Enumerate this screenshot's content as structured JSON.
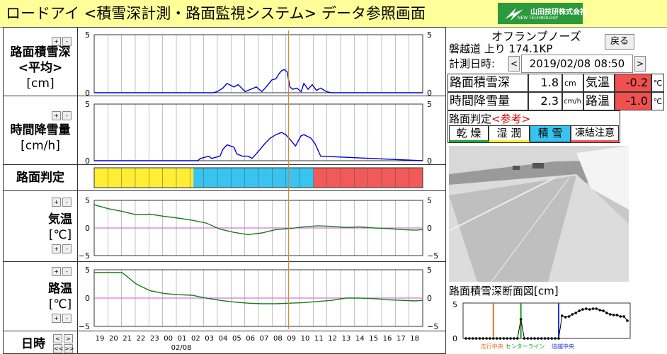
{
  "app": {
    "title": "ロードアイ <積雪深計測・路面監視システム> データ参照画面",
    "company": "山田技研株式会社",
    "company_sub": "NEW TECHNOLOGY"
  },
  "panels": {
    "snow_depth": {
      "label_line1": "路面積雪深",
      "label_line2": "<平均>",
      "label_line3": "[cm]"
    },
    "snowfall": {
      "label_line1": "時間降雪量",
      "label_line2": "[cm/h]"
    },
    "road_status": {
      "label": "路面判定"
    },
    "air_temp": {
      "label_line1": "気温",
      "label_line2": "[℃]"
    },
    "road_temp": {
      "label_line1": "路温",
      "label_line2": "[℃]"
    },
    "datetime_axis": {
      "label": "日時"
    }
  },
  "buttons": {
    "plus": "+",
    "minus": "-",
    "prev": "<",
    "next": ">",
    "first": "<<",
    "last": ">>"
  },
  "station": {
    "name": "オフランプノーズ",
    "route": "磐越道 上り 174.1KP",
    "back_label": "戻る",
    "datetime_label": "計測日時:",
    "datetime_value": "2019/02/08 08:50"
  },
  "readings": {
    "snow_depth_label": "路面積雪深",
    "snow_depth_value": "1.8",
    "snow_depth_unit": "cm",
    "air_temp_label": "気温",
    "air_temp_value": "-0.2",
    "temp_unit": "℃",
    "snowfall_label": "時間降雪量",
    "snowfall_value": "2.3",
    "snowfall_unit": "cm/h",
    "road_temp_label": "路温",
    "road_temp_value": "-1.0"
  },
  "judgement": {
    "title": "路面判定",
    "reference": "<参考>",
    "dry": "乾 燥",
    "wet": "湿 潤",
    "snow": "積 雪",
    "freeze": "凍結注意"
  },
  "cross_section": {
    "title": "路面積雪深断面図[cm]",
    "y_max_label": "5",
    "y_min_label": "0",
    "marker_left": "走行中央",
    "marker_center": "センターライン",
    "marker_right": "追越中央"
  },
  "colors": {
    "dry": "#22a833",
    "wet": "#ffee33",
    "snow": "#38c4f0",
    "freeze": "#f25a5a",
    "line_blue": "#0000dd",
    "line_green": "#1a7a1a"
  },
  "x_ticks": [
    "19",
    "20",
    "21",
    "22",
    "23",
    "00",
    "01",
    "02",
    "03",
    "04",
    "05",
    "06",
    "07",
    "08",
    "09",
    "10",
    "11",
    "12",
    "13",
    "14",
    "15",
    "16",
    "17",
    "18"
  ],
  "x_date_label": "02/08",
  "chart_data": [
    {
      "type": "line",
      "title": "路面積雪深",
      "ylim": [
        0,
        5
      ],
      "yticks": [
        0,
        5
      ],
      "x": [
        0,
        8.5,
        8.8,
        9.2,
        9.5,
        10.0,
        10.3,
        10.8,
        11.2,
        11.6,
        12.0,
        12.3,
        12.7,
        13.0,
        13.2,
        13.4,
        13.6,
        13.8,
        14.0,
        14.2,
        14.5,
        14.8,
        15.0,
        15.3,
        15.6,
        15.9,
        16.2,
        16.6,
        17.0,
        23.5
      ],
      "values": [
        0,
        0,
        0.1,
        0.4,
        0.8,
        0.5,
        0.7,
        0.1,
        0.3,
        0.5,
        0.1,
        0.5,
        1.1,
        1.2,
        1.6,
        1.9,
        2.0,
        1.8,
        0.5,
        0.3,
        0.4,
        0.1,
        0.8,
        0.3,
        0.7,
        0.2,
        0.4,
        0.1,
        0,
        0
      ],
      "color": "#0000dd"
    },
    {
      "type": "line",
      "title": "時間降雪量",
      "ylim": [
        0,
        5
      ],
      "yticks": [
        0,
        5
      ],
      "x": [
        0,
        7.4,
        7.6,
        8.2,
        8.4,
        9.0,
        9.2,
        9.5,
        10.0,
        10.2,
        10.6,
        11.0,
        11.3,
        11.8,
        12.2,
        12.6,
        13.0,
        13.4,
        13.7,
        14.0,
        14.4,
        14.8,
        15.0,
        15.5,
        15.8,
        16.2,
        23.5
      ],
      "values": [
        0,
        0,
        0.2,
        0.4,
        0.2,
        0.4,
        1.0,
        1.4,
        1.2,
        0.6,
        0.4,
        0.4,
        0.2,
        0.9,
        1.5,
        2.0,
        2.3,
        2.5,
        2.3,
        1.9,
        1.3,
        2.2,
        2.3,
        2.0,
        1.5,
        0.4,
        0
      ],
      "color": "#0000dd"
    },
    {
      "type": "table",
      "title": "路面判定",
      "segments": [
        {
          "from": 0,
          "to": 7.1,
          "status": "wet"
        },
        {
          "from": 7.1,
          "to": 15.7,
          "status": "snow"
        },
        {
          "from": 15.7,
          "to": 23.5,
          "status": "freeze"
        }
      ]
    },
    {
      "type": "line",
      "title": "気温",
      "ylim": [
        -5,
        5
      ],
      "yticks": [
        -5,
        0,
        5
      ],
      "x": [
        0,
        1,
        2,
        3,
        4,
        5,
        6,
        7,
        8,
        9,
        10,
        11,
        12,
        13,
        14,
        15,
        16,
        17,
        18,
        19,
        20,
        21,
        22,
        23,
        23.5
      ],
      "values": [
        4.2,
        3.5,
        3.0,
        2.4,
        2.5,
        2.1,
        1.8,
        1.4,
        0.9,
        -0.2,
        -0.8,
        -1.2,
        -0.9,
        -0.3,
        -0.1,
        0.2,
        0.4,
        0.3,
        0.1,
        0.2,
        0.0,
        -0.1,
        -0.3,
        -0.4,
        -0.3
      ],
      "color": "#1a7a1a"
    },
    {
      "type": "line",
      "title": "路温",
      "ylim": [
        -5,
        5
      ],
      "yticks": [
        -5,
        0,
        5
      ],
      "x": [
        0,
        1,
        2,
        3,
        4,
        5,
        6,
        7,
        8,
        9,
        10,
        11,
        12,
        13,
        14,
        15,
        16,
        17,
        18,
        19,
        20,
        21,
        22,
        23,
        23.5
      ],
      "values": [
        4.5,
        4.5,
        4.5,
        2.5,
        1.3,
        0.8,
        0.6,
        0.5,
        0.0,
        -0.4,
        -0.7,
        -0.9,
        -1.0,
        -1.0,
        -0.9,
        -0.8,
        -0.6,
        -0.4,
        0.0,
        0.0,
        -0.1,
        -0.3,
        -0.4,
        -0.5,
        -0.4
      ],
      "color": "#1a7a1a"
    },
    {
      "type": "scatter",
      "title": "路面積雪深断面図[cm]",
      "ylim": [
        0,
        5
      ],
      "x": [
        0,
        1,
        2,
        3,
        4,
        5,
        6,
        7,
        8,
        9,
        10,
        11,
        12,
        13,
        14,
        15,
        16,
        17,
        18,
        19,
        20,
        21,
        22,
        23,
        24,
        25,
        26,
        27,
        28,
        29,
        30,
        31,
        32,
        33,
        34,
        35,
        36,
        37,
        38,
        39,
        40,
        41,
        42,
        43,
        44,
        45,
        46,
        47
      ],
      "values": [
        0,
        0,
        0,
        0,
        0,
        0,
        0,
        0,
        0,
        0,
        0,
        0,
        0,
        0,
        0,
        0,
        2.7,
        0,
        0,
        0,
        0,
        0,
        0,
        0,
        0,
        0,
        0,
        0,
        3.2,
        3.0,
        3.1,
        3.4,
        3.6,
        3.9,
        4.1,
        4.2,
        4.1,
        4.2,
        4.2,
        4.0,
        3.9,
        3.6,
        3.4,
        3.3,
        3.3,
        3.1,
        3.1,
        2.5
      ]
    }
  ]
}
